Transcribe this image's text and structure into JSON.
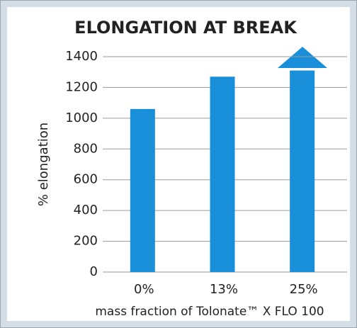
{
  "chart_data": {
    "type": "bar",
    "title": "ELONGATION AT BREAK",
    "y_label": "% elongation",
    "x_label": "mass fraction of Tolonate™ X FLO 100",
    "categories": [
      "0%",
      "13%",
      "25%"
    ],
    "values": [
      1060,
      1270,
      1310
    ],
    "color": "#1a8fd9",
    "ylim": [
      0,
      1400
    ],
    "yticks": [
      0,
      200,
      400,
      600,
      800,
      1000,
      1200,
      1400
    ],
    "grid": true
  }
}
